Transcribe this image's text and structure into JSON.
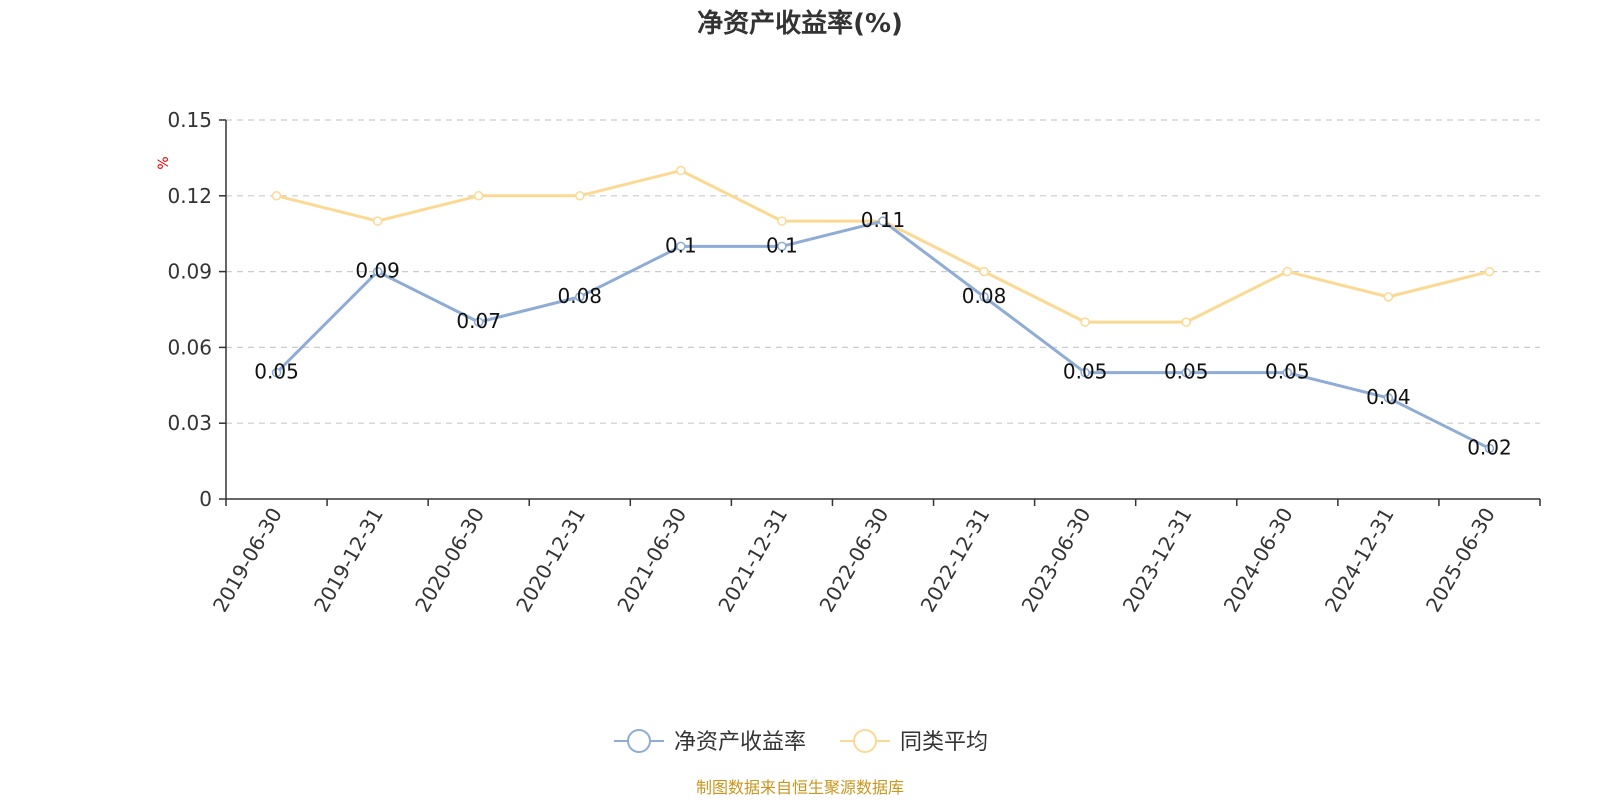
{
  "chart_data": {
    "type": "line",
    "title": "净资产收益率(%)",
    "y_unit": "%",
    "categories": [
      "2019-06-30",
      "2019-12-31",
      "2020-06-30",
      "2020-12-31",
      "2021-06-30",
      "2021-12-31",
      "2022-06-30",
      "2022-12-31",
      "2023-06-30",
      "2023-12-31",
      "2024-06-30",
      "2024-12-31",
      "2025-06-30"
    ],
    "ylim": [
      0,
      0.15
    ],
    "yticks": [
      "0",
      "0.03",
      "0.06",
      "0.09",
      "0.12",
      "0.15"
    ],
    "ytick_values": [
      0,
      0.03,
      0.06,
      0.09,
      0.12,
      0.15
    ],
    "grid": true,
    "legend_position": "bottom-center",
    "series": [
      {
        "name": "净资产收益率",
        "color": "#8eacd6",
        "values": [
          0.05,
          0.09,
          0.07,
          0.08,
          0.1,
          0.1,
          0.11,
          0.08,
          0.05,
          0.05,
          0.05,
          0.04,
          0.02
        ],
        "labels": [
          "0.05",
          "0.09",
          "0.07",
          "0.08",
          "0.1",
          "0.1",
          "0.11",
          "0.08",
          "0.05",
          "0.05",
          "0.05",
          "0.04",
          "0.02"
        ]
      },
      {
        "name": "同类平均",
        "color": "#fcd993",
        "values": [
          0.12,
          0.11,
          0.12,
          0.12,
          0.13,
          0.11,
          0.11,
          0.09,
          0.07,
          0.07,
          0.09,
          0.08,
          0.09
        ]
      }
    ],
    "source": "制图数据来自恒生聚源数据库"
  }
}
